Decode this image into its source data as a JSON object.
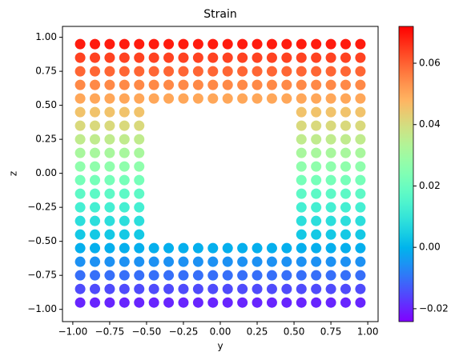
{
  "chart_data": {
    "type": "scatter",
    "title": "Strain",
    "xlabel": "y",
    "ylabel": "z",
    "colormap": "rainbow",
    "xlim": [
      -1.07,
      1.07
    ],
    "ylim": [
      -1.09,
      1.08
    ],
    "clim": [
      -0.0242,
      0.072
    ],
    "xticks": [
      {
        "value": -1,
        "label": "−1.00"
      },
      {
        "value": -0.75,
        "label": "−0.75"
      },
      {
        "value": -0.5,
        "label": "−0.50"
      },
      {
        "value": -0.25,
        "label": "−0.25"
      },
      {
        "value": 0,
        "label": "0.00"
      },
      {
        "value": 0.25,
        "label": "0.25"
      },
      {
        "value": 0.5,
        "label": "0.50"
      },
      {
        "value": 0.75,
        "label": "0.75"
      },
      {
        "value": 1,
        "label": "1.00"
      }
    ],
    "yticks": [
      {
        "value": -1,
        "label": "−1.00"
      },
      {
        "value": -0.75,
        "label": "−0.75"
      },
      {
        "value": -0.5,
        "label": "−0.50"
      },
      {
        "value": -0.25,
        "label": "−0.25"
      },
      {
        "value": 0,
        "label": "0.00"
      },
      {
        "value": 0.25,
        "label": "0.25"
      },
      {
        "value": 0.5,
        "label": "0.50"
      },
      {
        "value": 0.75,
        "label": "0.75"
      },
      {
        "value": 1,
        "label": "1.00"
      }
    ],
    "cticks": [
      {
        "value": -0.02,
        "label": "−0.02"
      },
      {
        "value": 0,
        "label": "0.00"
      },
      {
        "value": 0.02,
        "label": "0.02"
      },
      {
        "value": 0.04,
        "label": "0.04"
      },
      {
        "value": 0.06,
        "label": "0.06"
      }
    ],
    "x": [
      -0.95,
      -0.85,
      -0.75,
      -0.65,
      -0.55,
      -0.45,
      -0.35,
      -0.25,
      -0.15,
      -0.05,
      0.05,
      0.15,
      0.25,
      0.35,
      0.45,
      0.55,
      0.65,
      0.75,
      0.85,
      0.95,
      -0.95,
      -0.85,
      -0.75,
      -0.65,
      -0.55,
      -0.45,
      -0.35,
      -0.25,
      -0.15,
      -0.05,
      0.05,
      0.15,
      0.25,
      0.35,
      0.45,
      0.55,
      0.65,
      0.75,
      0.85,
      0.95,
      -0.95,
      -0.85,
      -0.75,
      -0.65,
      -0.55,
      -0.45,
      -0.35,
      -0.25,
      -0.15,
      -0.05,
      0.05,
      0.15,
      0.25,
      0.35,
      0.45,
      0.55,
      0.65,
      0.75,
      0.85,
      0.95,
      -0.95,
      -0.85,
      -0.75,
      -0.65,
      -0.55,
      -0.45,
      -0.35,
      -0.25,
      -0.15,
      -0.05,
      0.05,
      0.15,
      0.25,
      0.35,
      0.45,
      0.55,
      0.65,
      0.75,
      0.85,
      0.95,
      -0.95,
      -0.85,
      -0.75,
      -0.65,
      -0.55,
      -0.45,
      -0.35,
      -0.25,
      -0.15,
      -0.05,
      0.05,
      0.15,
      0.25,
      0.35,
      0.45,
      0.55,
      0.65,
      0.75,
      0.85,
      0.95,
      -0.95,
      -0.85,
      -0.75,
      -0.65,
      -0.55,
      0.55,
      0.65,
      0.75,
      0.85,
      0.95,
      -0.95,
      -0.85,
      -0.75,
      -0.65,
      -0.55,
      0.55,
      0.65,
      0.75,
      0.85,
      0.95,
      -0.95,
      -0.85,
      -0.75,
      -0.65,
      -0.55,
      0.55,
      0.65,
      0.75,
      0.85,
      0.95,
      -0.95,
      -0.85,
      -0.75,
      -0.65,
      -0.55,
      0.55,
      0.65,
      0.75,
      0.85,
      0.95,
      -0.95,
      -0.85,
      -0.75,
      -0.65,
      -0.55,
      0.55,
      0.65,
      0.75,
      0.85,
      0.95,
      -0.95,
      -0.85,
      -0.75,
      -0.65,
      -0.55,
      0.55,
      0.65,
      0.75,
      0.85,
      0.95,
      -0.95,
      -0.85,
      -0.75,
      -0.65,
      -0.55,
      0.55,
      0.65,
      0.75,
      0.85,
      0.95,
      -0.95,
      -0.85,
      -0.75,
      -0.65,
      -0.55,
      0.55,
      0.65,
      0.75,
      0.85,
      0.95,
      -0.95,
      -0.85,
      -0.75,
      -0.65,
      -0.55,
      0.55,
      0.65,
      0.75,
      0.85,
      0.95,
      -0.95,
      -0.85,
      -0.75,
      -0.65,
      -0.55,
      0.55,
      0.65,
      0.75,
      0.85,
      0.95,
      -0.95,
      -0.85,
      -0.75,
      -0.65,
      -0.55,
      -0.45,
      -0.35,
      -0.25,
      -0.15,
      -0.05,
      0.05,
      0.15,
      0.25,
      0.35,
      0.45,
      0.55,
      0.65,
      0.75,
      0.85,
      0.95,
      -0.95,
      -0.85,
      -0.75,
      -0.65,
      -0.55,
      -0.45,
      -0.35,
      -0.25,
      -0.15,
      -0.05,
      0.05,
      0.15,
      0.25,
      0.35,
      0.45,
      0.55,
      0.65,
      0.75,
      0.85,
      0.95,
      -0.95,
      -0.85,
      -0.75,
      -0.65,
      -0.55,
      -0.45,
      -0.35,
      -0.25,
      -0.15,
      -0.05,
      0.05,
      0.15,
      0.25,
      0.35,
      0.45,
      0.55,
      0.65,
      0.75,
      0.85,
      0.95,
      -0.95,
      -0.85,
      -0.75,
      -0.65,
      -0.55,
      -0.45,
      -0.35,
      -0.25,
      -0.15,
      -0.05,
      0.05,
      0.15,
      0.25,
      0.35,
      0.45,
      0.55,
      0.65,
      0.75,
      0.85,
      0.95,
      -0.95,
      -0.85,
      -0.75,
      -0.65,
      -0.55,
      -0.45,
      -0.35,
      -0.25,
      -0.15,
      -0.05,
      0.05,
      0.15,
      0.25,
      0.35,
      0.45,
      0.55,
      0.65,
      0.75,
      0.85,
      0.95
    ],
    "y": [
      -0.95,
      -0.95,
      -0.95,
      -0.95,
      -0.95,
      -0.95,
      -0.95,
      -0.95,
      -0.95,
      -0.95,
      -0.95,
      -0.95,
      -0.95,
      -0.95,
      -0.95,
      -0.95,
      -0.95,
      -0.95,
      -0.95,
      -0.95,
      -0.85,
      -0.85,
      -0.85,
      -0.85,
      -0.85,
      -0.85,
      -0.85,
      -0.85,
      -0.85,
      -0.85,
      -0.85,
      -0.85,
      -0.85,
      -0.85,
      -0.85,
      -0.85,
      -0.85,
      -0.85,
      -0.85,
      -0.85,
      -0.75,
      -0.75,
      -0.75,
      -0.75,
      -0.75,
      -0.75,
      -0.75,
      -0.75,
      -0.75,
      -0.75,
      -0.75,
      -0.75,
      -0.75,
      -0.75,
      -0.75,
      -0.75,
      -0.75,
      -0.75,
      -0.75,
      -0.75,
      -0.65,
      -0.65,
      -0.65,
      -0.65,
      -0.65,
      -0.65,
      -0.65,
      -0.65,
      -0.65,
      -0.65,
      -0.65,
      -0.65,
      -0.65,
      -0.65,
      -0.65,
      -0.65,
      -0.65,
      -0.65,
      -0.65,
      -0.65,
      -0.55,
      -0.55,
      -0.55,
      -0.55,
      -0.55,
      -0.55,
      -0.55,
      -0.55,
      -0.55,
      -0.55,
      -0.55,
      -0.55,
      -0.55,
      -0.55,
      -0.55,
      -0.55,
      -0.55,
      -0.55,
      -0.55,
      -0.55,
      -0.45,
      -0.45,
      -0.45,
      -0.45,
      -0.45,
      -0.45,
      -0.45,
      -0.45,
      -0.45,
      -0.45,
      -0.35,
      -0.35,
      -0.35,
      -0.35,
      -0.35,
      -0.35,
      -0.35,
      -0.35,
      -0.35,
      -0.35,
      -0.25,
      -0.25,
      -0.25,
      -0.25,
      -0.25,
      -0.25,
      -0.25,
      -0.25,
      -0.25,
      -0.25,
      -0.15,
      -0.15,
      -0.15,
      -0.15,
      -0.15,
      -0.15,
      -0.15,
      -0.15,
      -0.15,
      -0.15,
      -0.05,
      -0.05,
      -0.05,
      -0.05,
      -0.05,
      -0.05,
      -0.05,
      -0.05,
      -0.05,
      -0.05,
      0.05,
      0.05,
      0.05,
      0.05,
      0.05,
      0.05,
      0.05,
      0.05,
      0.05,
      0.05,
      0.15,
      0.15,
      0.15,
      0.15,
      0.15,
      0.15,
      0.15,
      0.15,
      0.15,
      0.15,
      0.25,
      0.25,
      0.25,
      0.25,
      0.25,
      0.25,
      0.25,
      0.25,
      0.25,
      0.25,
      0.35,
      0.35,
      0.35,
      0.35,
      0.35,
      0.35,
      0.35,
      0.35,
      0.35,
      0.35,
      0.45,
      0.45,
      0.45,
      0.45,
      0.45,
      0.45,
      0.45,
      0.45,
      0.45,
      0.45,
      0.55,
      0.55,
      0.55,
      0.55,
      0.55,
      0.55,
      0.55,
      0.55,
      0.55,
      0.55,
      0.55,
      0.55,
      0.55,
      0.55,
      0.55,
      0.55,
      0.55,
      0.55,
      0.55,
      0.55,
      0.65,
      0.65,
      0.65,
      0.65,
      0.65,
      0.65,
      0.65,
      0.65,
      0.65,
      0.65,
      0.65,
      0.65,
      0.65,
      0.65,
      0.65,
      0.65,
      0.65,
      0.65,
      0.65,
      0.65,
      0.75,
      0.75,
      0.75,
      0.75,
      0.75,
      0.75,
      0.75,
      0.75,
      0.75,
      0.75,
      0.75,
      0.75,
      0.75,
      0.75,
      0.75,
      0.75,
      0.75,
      0.75,
      0.75,
      0.75,
      0.85,
      0.85,
      0.85,
      0.85,
      0.85,
      0.85,
      0.85,
      0.85,
      0.85,
      0.85,
      0.85,
      0.85,
      0.85,
      0.85,
      0.85,
      0.85,
      0.85,
      0.85,
      0.85,
      0.85,
      0.95,
      0.95,
      0.95,
      0.95,
      0.95,
      0.95,
      0.95,
      0.95,
      0.95,
      0.95,
      0.95,
      0.95,
      0.95,
      0.95,
      0.95,
      0.95,
      0.95,
      0.95,
      0.95,
      0.95
    ],
    "color_values": [
      -0.0197,
      -0.0197,
      -0.0197,
      -0.0197,
      -0.0197,
      -0.0197,
      -0.0197,
      -0.0197,
      -0.0197,
      -0.0197,
      -0.0197,
      -0.0197,
      -0.0197,
      -0.0197,
      -0.0197,
      -0.0197,
      -0.0197,
      -0.0197,
      -0.0197,
      -0.0197,
      -0.015,
      -0.015,
      -0.015,
      -0.015,
      -0.015,
      -0.015,
      -0.015,
      -0.015,
      -0.015,
      -0.015,
      -0.015,
      -0.015,
      -0.015,
      -0.015,
      -0.015,
      -0.015,
      -0.015,
      -0.015,
      -0.015,
      -0.015,
      -0.0104,
      -0.0104,
      -0.0104,
      -0.0104,
      -0.0104,
      -0.0104,
      -0.0104,
      -0.0104,
      -0.0104,
      -0.0104,
      -0.0104,
      -0.0104,
      -0.0104,
      -0.0104,
      -0.0104,
      -0.0104,
      -0.0104,
      -0.0104,
      -0.0104,
      -0.0104,
      -0.0057,
      -0.0057,
      -0.0057,
      -0.0057,
      -0.0057,
      -0.0057,
      -0.0057,
      -0.0057,
      -0.0057,
      -0.0057,
      -0.0057,
      -0.0057,
      -0.0057,
      -0.0057,
      -0.0057,
      -0.0057,
      -0.0057,
      -0.0057,
      -0.0057,
      -0.0057,
      -0.0011,
      -0.0011,
      -0.0011,
      -0.0011,
      -0.0011,
      -0.0011,
      -0.0011,
      -0.0011,
      -0.0011,
      -0.0011,
      -0.0011,
      -0.0011,
      -0.0011,
      -0.0011,
      -0.0011,
      -0.0011,
      -0.0011,
      -0.0011,
      -0.0011,
      -0.0011,
      0.0036,
      0.0036,
      0.0036,
      0.0036,
      0.0036,
      0.0036,
      0.0036,
      0.0036,
      0.0036,
      0.0036,
      0.0082,
      0.0082,
      0.0082,
      0.0082,
      0.0082,
      0.0082,
      0.0082,
      0.0082,
      0.0082,
      0.0082,
      0.0129,
      0.0129,
      0.0129,
      0.0129,
      0.0129,
      0.0129,
      0.0129,
      0.0129,
      0.0129,
      0.0129,
      0.0175,
      0.0175,
      0.0175,
      0.0175,
      0.0175,
      0.0175,
      0.0175,
      0.0175,
      0.0175,
      0.0175,
      0.0222,
      0.0222,
      0.0222,
      0.0222,
      0.0222,
      0.0222,
      0.0222,
      0.0222,
      0.0222,
      0.0222,
      0.0268,
      0.0268,
      0.0268,
      0.0268,
      0.0268,
      0.0268,
      0.0268,
      0.0268,
      0.0268,
      0.0268,
      0.0315,
      0.0315,
      0.0315,
      0.0315,
      0.0315,
      0.0315,
      0.0315,
      0.0315,
      0.0315,
      0.0315,
      0.0361,
      0.0361,
      0.0361,
      0.0361,
      0.0361,
      0.0361,
      0.0361,
      0.0361,
      0.0361,
      0.0361,
      0.0408,
      0.0408,
      0.0408,
      0.0408,
      0.0408,
      0.0408,
      0.0408,
      0.0408,
      0.0408,
      0.0408,
      0.0454,
      0.0454,
      0.0454,
      0.0454,
      0.0454,
      0.0454,
      0.0454,
      0.0454,
      0.0454,
      0.0454,
      0.0501,
      0.0501,
      0.0501,
      0.0501,
      0.0501,
      0.0501,
      0.0501,
      0.0501,
      0.0501,
      0.0501,
      0.0501,
      0.0501,
      0.0501,
      0.0501,
      0.0501,
      0.0501,
      0.0501,
      0.0501,
      0.0501,
      0.0501,
      0.0547,
      0.0547,
      0.0547,
      0.0547,
      0.0547,
      0.0547,
      0.0547,
      0.0547,
      0.0547,
      0.0547,
      0.0547,
      0.0547,
      0.0547,
      0.0547,
      0.0547,
      0.0547,
      0.0547,
      0.0547,
      0.0547,
      0.0547,
      0.0594,
      0.0594,
      0.0594,
      0.0594,
      0.0594,
      0.0594,
      0.0594,
      0.0594,
      0.0594,
      0.0594,
      0.0594,
      0.0594,
      0.0594,
      0.0594,
      0.0594,
      0.0594,
      0.0594,
      0.0594,
      0.0594,
      0.0594,
      0.064,
      0.064,
      0.064,
      0.064,
      0.064,
      0.064,
      0.064,
      0.064,
      0.064,
      0.064,
      0.064,
      0.064,
      0.064,
      0.064,
      0.064,
      0.064,
      0.064,
      0.064,
      0.064,
      0.064,
      0.0687,
      0.0687,
      0.0687,
      0.0687,
      0.0687,
      0.0687,
      0.0687,
      0.0687,
      0.0687,
      0.0687,
      0.0687,
      0.0687,
      0.0687,
      0.0687,
      0.0687,
      0.0687,
      0.0687,
      0.0687,
      0.0687,
      0.0687
    ]
  }
}
